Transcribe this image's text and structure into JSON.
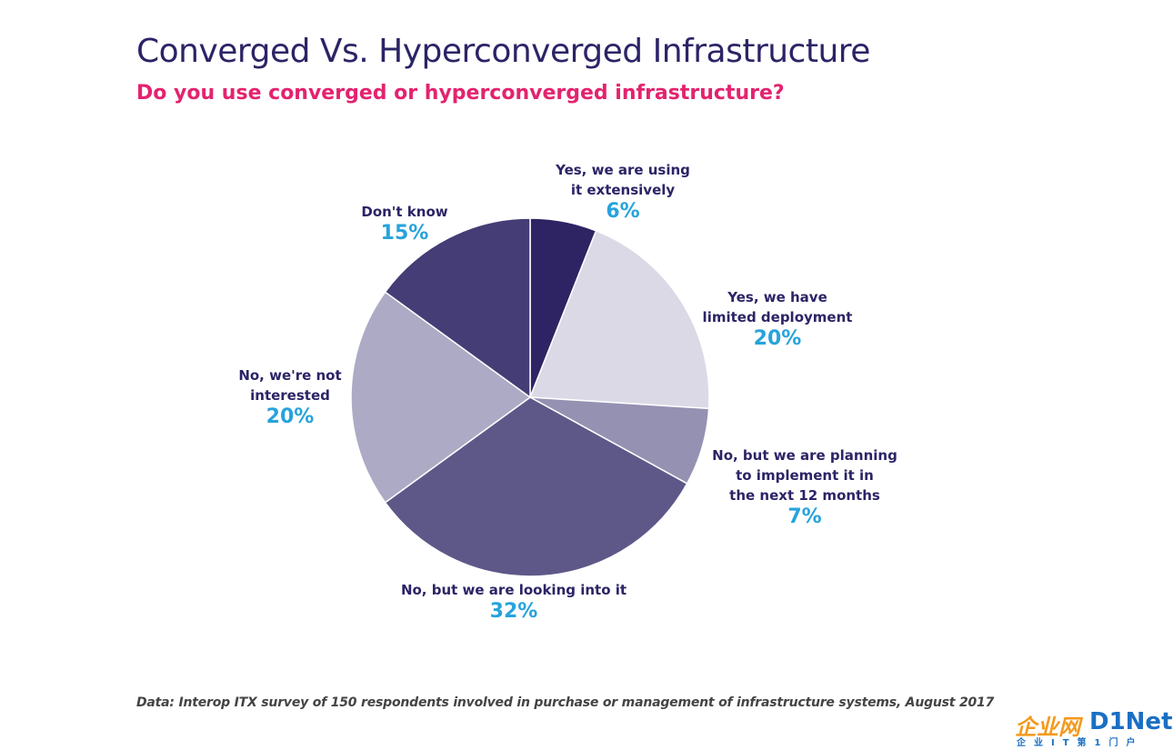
{
  "header": {
    "title": "Converged Vs. Hyperconverged Infrastructure",
    "subtitle": "Do you use converged or hyperconverged infrastructure?"
  },
  "chart_data": {
    "type": "pie",
    "title": "Converged Vs. Hyperconverged Infrastructure",
    "subtitle": "Do you use converged or hyperconverged infrastructure?",
    "unit": "%",
    "slices": [
      {
        "label": "Yes, we are using it extensively",
        "value": 6,
        "value_label": "6%",
        "color": "#2e2463"
      },
      {
        "label": "Yes, we have limited deployment",
        "value": 20,
        "value_label": "20%",
        "color": "#dcd9e6"
      },
      {
        "label": "No, but we are planning to implement it in the next 12 months",
        "value": 7,
        "value_label": "7%",
        "color": "#9591b2"
      },
      {
        "label": "No, but we are looking into it",
        "value": 32,
        "value_label": "32%",
        "color": "#5e5889"
      },
      {
        "label": "No, we're not interested",
        "value": 20,
        "value_label": "20%",
        "color": "#adaac5"
      },
      {
        "label": "Don't know",
        "value": 15,
        "value_label": "15%",
        "color": "#443d76"
      }
    ],
    "start_angle_deg": 0,
    "direction": "clockwise",
    "label_color": "#2b2466",
    "value_color": "#27a3dc"
  },
  "labels": {
    "s0_lines": [
      "Yes, we are using",
      "it extensively"
    ],
    "s1_lines": [
      "Yes, we have",
      "limited deployment"
    ],
    "s2_lines": [
      "No, but we are planning",
      "to implement it in",
      "the next 12 months"
    ],
    "s3_lines": [
      "No, but we are looking into it"
    ],
    "s4_lines": [
      "No, we're not",
      "interested"
    ],
    "s5_lines": [
      "Don't know"
    ]
  },
  "footer": {
    "source": "Data: Interop ITX survey of 150 respondents involved in purchase or management of infrastructure systems, August 2017"
  },
  "logo": {
    "text_cn": "企业网",
    "text_en": "D1Net",
    "tagline": "企业IT第1门户"
  }
}
